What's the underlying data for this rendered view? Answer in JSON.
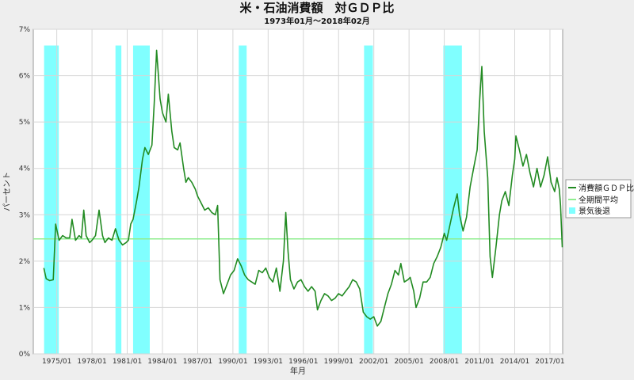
{
  "chart_data": {
    "type": "line",
    "title": "米・石油消費額　対ＧＤＰ比",
    "subtitle": "1973年01月～2018年02月",
    "xlabel": "年月",
    "ylabel": "パーセント",
    "ylim": [
      0,
      7
    ],
    "xlim": [
      "1973/01",
      "2018/02"
    ],
    "y_ticks": [
      "0%",
      "1%",
      "2%",
      "3%",
      "4%",
      "5%",
      "6%",
      "7%"
    ],
    "x_ticks": [
      "1975/01",
      "1978/01",
      "1981/01",
      "1984/01",
      "1987/01",
      "1990/01",
      "1993/01",
      "1996/01",
      "1999/01",
      "2002/01",
      "2005/01",
      "2008/01",
      "2011/01",
      "2014/01",
      "2017/01"
    ],
    "grid": true,
    "legend_position": "right",
    "series": [
      {
        "name": "消費額ＧＤＰ比",
        "color": "#228b22",
        "points": [
          [
            1973.9,
            1.85
          ],
          [
            1974.1,
            1.62
          ],
          [
            1974.4,
            1.58
          ],
          [
            1974.7,
            1.6
          ],
          [
            1974.9,
            2.8
          ],
          [
            1975.2,
            2.45
          ],
          [
            1975.5,
            2.55
          ],
          [
            1975.8,
            2.5
          ],
          [
            1976.1,
            2.5
          ],
          [
            1976.3,
            2.9
          ],
          [
            1976.6,
            2.45
          ],
          [
            1976.9,
            2.55
          ],
          [
            1977.1,
            2.5
          ],
          [
            1977.3,
            3.1
          ],
          [
            1977.5,
            2.55
          ],
          [
            1977.8,
            2.4
          ],
          [
            1978.0,
            2.45
          ],
          [
            1978.3,
            2.55
          ],
          [
            1978.6,
            3.1
          ],
          [
            1978.9,
            2.55
          ],
          [
            1979.1,
            2.4
          ],
          [
            1979.4,
            2.5
          ],
          [
            1979.7,
            2.45
          ],
          [
            1980.0,
            2.7
          ],
          [
            1980.3,
            2.45
          ],
          [
            1980.6,
            2.35
          ],
          [
            1980.9,
            2.4
          ],
          [
            1981.1,
            2.45
          ],
          [
            1981.3,
            2.8
          ],
          [
            1981.5,
            2.9
          ],
          [
            1981.8,
            3.3
          ],
          [
            1982.0,
            3.6
          ],
          [
            1982.3,
            4.2
          ],
          [
            1982.5,
            4.45
          ],
          [
            1982.8,
            4.3
          ],
          [
            1983.1,
            4.5
          ],
          [
            1983.3,
            5.4
          ],
          [
            1983.5,
            6.55
          ],
          [
            1983.8,
            5.5
          ],
          [
            1984.0,
            5.2
          ],
          [
            1984.3,
            5.0
          ],
          [
            1984.5,
            5.6
          ],
          [
            1984.8,
            4.8
          ],
          [
            1985.0,
            4.45
          ],
          [
            1985.3,
            4.4
          ],
          [
            1985.5,
            4.55
          ],
          [
            1985.8,
            4.0
          ],
          [
            1986.0,
            3.7
          ],
          [
            1986.2,
            3.8
          ],
          [
            1986.5,
            3.7
          ],
          [
            1986.8,
            3.55
          ],
          [
            1987.0,
            3.4
          ],
          [
            1987.3,
            3.25
          ],
          [
            1987.6,
            3.1
          ],
          [
            1987.9,
            3.15
          ],
          [
            1988.2,
            3.05
          ],
          [
            1988.5,
            3.0
          ],
          [
            1988.7,
            3.2
          ],
          [
            1988.9,
            1.6
          ],
          [
            1989.2,
            1.3
          ],
          [
            1989.5,
            1.5
          ],
          [
            1989.8,
            1.7
          ],
          [
            1990.1,
            1.8
          ],
          [
            1990.4,
            2.05
          ],
          [
            1990.7,
            1.9
          ],
          [
            1991.0,
            1.7
          ],
          [
            1991.3,
            1.6
          ],
          [
            1991.6,
            1.55
          ],
          [
            1991.9,
            1.5
          ],
          [
            1992.2,
            1.8
          ],
          [
            1992.5,
            1.75
          ],
          [
            1992.8,
            1.85
          ],
          [
            1993.1,
            1.65
          ],
          [
            1993.4,
            1.55
          ],
          [
            1993.7,
            1.85
          ],
          [
            1994.0,
            1.35
          ],
          [
            1994.3,
            2.0
          ],
          [
            1994.5,
            3.05
          ],
          [
            1994.7,
            2.2
          ],
          [
            1994.9,
            1.6
          ],
          [
            1995.2,
            1.4
          ],
          [
            1995.5,
            1.55
          ],
          [
            1995.8,
            1.6
          ],
          [
            1996.1,
            1.45
          ],
          [
            1996.4,
            1.35
          ],
          [
            1996.7,
            1.45
          ],
          [
            1997.0,
            1.35
          ],
          [
            1997.2,
            0.95
          ],
          [
            1997.5,
            1.15
          ],
          [
            1997.8,
            1.3
          ],
          [
            1998.1,
            1.25
          ],
          [
            1998.4,
            1.15
          ],
          [
            1998.7,
            1.2
          ],
          [
            1999.0,
            1.3
          ],
          [
            1999.3,
            1.25
          ],
          [
            1999.6,
            1.35
          ],
          [
            1999.9,
            1.45
          ],
          [
            2000.2,
            1.6
          ],
          [
            2000.5,
            1.55
          ],
          [
            2000.8,
            1.4
          ],
          [
            2001.1,
            0.9
          ],
          [
            2001.4,
            0.8
          ],
          [
            2001.7,
            0.75
          ],
          [
            2002.0,
            0.8
          ],
          [
            2002.3,
            0.6
          ],
          [
            2002.6,
            0.7
          ],
          [
            2002.9,
            1.0
          ],
          [
            2003.2,
            1.3
          ],
          [
            2003.5,
            1.5
          ],
          [
            2003.8,
            1.8
          ],
          [
            2004.1,
            1.7
          ],
          [
            2004.3,
            1.95
          ],
          [
            2004.6,
            1.55
          ],
          [
            2004.9,
            1.6
          ],
          [
            2005.1,
            1.65
          ],
          [
            2005.4,
            1.35
          ],
          [
            2005.6,
            1.0
          ],
          [
            2005.9,
            1.2
          ],
          [
            2006.2,
            1.55
          ],
          [
            2006.5,
            1.55
          ],
          [
            2006.8,
            1.65
          ],
          [
            2007.1,
            1.95
          ],
          [
            2007.4,
            2.1
          ],
          [
            2007.7,
            2.3
          ],
          [
            2008.0,
            2.6
          ],
          [
            2008.2,
            2.45
          ],
          [
            2008.5,
            2.8
          ],
          [
            2008.8,
            3.15
          ],
          [
            2009.1,
            3.45
          ],
          [
            2009.3,
            3.0
          ],
          [
            2009.6,
            2.65
          ],
          [
            2009.9,
            2.95
          ],
          [
            2010.2,
            3.6
          ],
          [
            2010.5,
            4.0
          ],
          [
            2010.8,
            4.4
          ],
          [
            2011.0,
            5.4
          ],
          [
            2011.2,
            6.2
          ],
          [
            2011.4,
            4.8
          ],
          [
            2011.7,
            3.8
          ],
          [
            2011.9,
            2.1
          ],
          [
            2012.1,
            1.65
          ],
          [
            2012.4,
            2.3
          ],
          [
            2012.7,
            3.0
          ],
          [
            2012.9,
            3.3
          ],
          [
            2013.2,
            3.5
          ],
          [
            2013.5,
            3.2
          ],
          [
            2013.8,
            3.85
          ],
          [
            2014.0,
            4.2
          ],
          [
            2014.1,
            4.7
          ],
          [
            2014.4,
            4.4
          ],
          [
            2014.7,
            4.05
          ],
          [
            2015.0,
            4.3
          ],
          [
            2015.3,
            3.9
          ],
          [
            2015.6,
            3.6
          ],
          [
            2015.9,
            4.0
          ],
          [
            2016.2,
            3.6
          ],
          [
            2016.5,
            3.85
          ],
          [
            2016.8,
            4.25
          ],
          [
            2017.1,
            3.7
          ],
          [
            2017.4,
            3.5
          ],
          [
            2017.6,
            3.8
          ],
          [
            2017.8,
            3.55
          ],
          [
            2017.9,
            3.2
          ],
          [
            2018.05,
            2.3
          ]
        ]
      },
      {
        "name": "全期間平均",
        "color": "#90ee90",
        "values": [
          2.48
        ]
      }
    ],
    "recessions": {
      "name": "景気後退",
      "color": "#80ffff",
      "periods": [
        [
          1973.92,
          1975.17
        ],
        [
          1980.0,
          1980.5
        ],
        [
          1981.5,
          1982.92
        ],
        [
          1990.5,
          1991.17
        ],
        [
          2001.17,
          2001.92
        ],
        [
          2007.92,
          2009.5
        ]
      ]
    }
  }
}
